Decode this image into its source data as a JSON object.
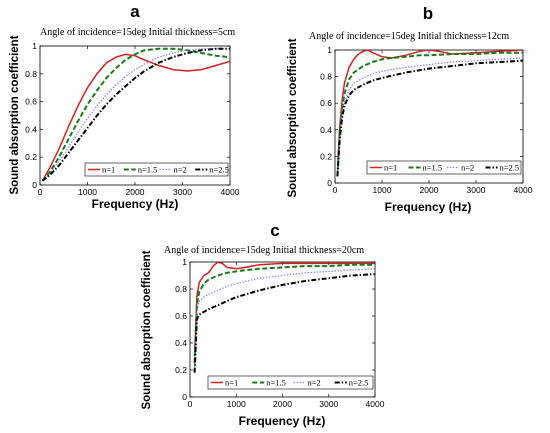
{
  "chart_data": [
    {
      "type": "line",
      "panel": "a",
      "title": "Angle of incidence=15deg Initial thickness=5cm",
      "xlabel": "Frequency (Hz)",
      "ylabel": "Sound absorption coefficient",
      "xlim": [
        0,
        4000
      ],
      "ylim": [
        0,
        1
      ],
      "xticks": [
        "0",
        "1000",
        "2000",
        "3000",
        "4000"
      ],
      "yticks": [
        "0",
        "0.2",
        "0.4",
        "0.6",
        "0.8",
        "1"
      ],
      "grid": false,
      "legend_position": "bottom-right",
      "series": [
        {
          "name": "n=1",
          "color": "#d62020",
          "dash": "solid",
          "x": [
            50,
            200,
            400,
            600,
            800,
            1000,
            1200,
            1400,
            1600,
            1800,
            2000,
            2200,
            2500,
            2800,
            3100,
            3400,
            3700,
            4000
          ],
          "y": [
            0.03,
            0.12,
            0.26,
            0.42,
            0.57,
            0.7,
            0.8,
            0.88,
            0.92,
            0.94,
            0.93,
            0.9,
            0.86,
            0.83,
            0.82,
            0.83,
            0.86,
            0.89
          ]
        },
        {
          "name": "n=1.5",
          "color": "#1a7a1a",
          "dash": "dashed",
          "x": [
            50,
            200,
            400,
            600,
            800,
            1000,
            1200,
            1400,
            1600,
            1800,
            2000,
            2200,
            2500,
            2800,
            3100,
            3400,
            3700,
            4000
          ],
          "y": [
            0.03,
            0.09,
            0.2,
            0.33,
            0.46,
            0.58,
            0.68,
            0.77,
            0.84,
            0.9,
            0.94,
            0.97,
            0.98,
            0.98,
            0.97,
            0.95,
            0.93,
            0.92
          ]
        },
        {
          "name": "n=2",
          "color": "#7b7bff",
          "dash": "dotted",
          "x": [
            50,
            200,
            400,
            600,
            800,
            1000,
            1200,
            1400,
            1600,
            1800,
            2000,
            2200,
            2500,
            2800,
            3100,
            3400,
            3700,
            4000
          ],
          "y": [
            0.03,
            0.08,
            0.17,
            0.27,
            0.38,
            0.48,
            0.57,
            0.65,
            0.72,
            0.78,
            0.83,
            0.87,
            0.92,
            0.95,
            0.97,
            0.98,
            0.98,
            0.98
          ]
        },
        {
          "name": "n=2.5",
          "color": "#000000",
          "dash": "dashdot",
          "x": [
            50,
            200,
            400,
            600,
            800,
            1000,
            1200,
            1400,
            1600,
            1800,
            2000,
            2200,
            2500,
            2800,
            3100,
            3400,
            3700,
            4000
          ],
          "y": [
            0.03,
            0.07,
            0.14,
            0.23,
            0.32,
            0.41,
            0.5,
            0.58,
            0.65,
            0.71,
            0.77,
            0.82,
            0.88,
            0.92,
            0.95,
            0.97,
            0.98,
            0.98
          ]
        }
      ]
    },
    {
      "type": "line",
      "panel": "b",
      "title": "Angle of incidence=15deg Initial thickness=12cm",
      "xlabel": "Frequency (Hz)",
      "ylabel": "Sound absorption coefficient",
      "xlim": [
        0,
        4000
      ],
      "ylim": [
        0,
        1
      ],
      "xticks": [
        "0",
        "1000",
        "2000",
        "3000",
        "4000"
      ],
      "yticks": [
        "0",
        "0.2",
        "0.4",
        "0.6",
        "0.8",
        "1"
      ],
      "grid": false,
      "legend_position": "bottom-right",
      "series": [
        {
          "name": "n=1",
          "color": "#d62020",
          "dash": "solid",
          "x": [
            50,
            100,
            150,
            200,
            300,
            400,
            500,
            600,
            700,
            800,
            1000,
            1200,
            1500,
            1800,
            2000,
            2200,
            2500,
            3000,
            3500,
            4000
          ],
          "y": [
            0.05,
            0.42,
            0.62,
            0.75,
            0.87,
            0.93,
            0.97,
            0.99,
            1.0,
            0.98,
            0.95,
            0.94,
            0.96,
            0.99,
            1.0,
            0.99,
            0.97,
            0.98,
            0.99,
            1.0
          ]
        },
        {
          "name": "n=1.5",
          "color": "#1a7a1a",
          "dash": "dashed",
          "x": [
            50,
            100,
            150,
            200,
            300,
            400,
            600,
            800,
            1000,
            1200,
            1500,
            1800,
            2000,
            2500,
            3000,
            3500,
            4000
          ],
          "y": [
            0.05,
            0.38,
            0.56,
            0.67,
            0.78,
            0.83,
            0.88,
            0.91,
            0.93,
            0.94,
            0.95,
            0.96,
            0.96,
            0.97,
            0.97,
            0.98,
            0.98
          ]
        },
        {
          "name": "n=2",
          "color": "#7b7bff",
          "dash": "dotted",
          "x": [
            50,
            100,
            150,
            200,
            300,
            400,
            600,
            800,
            1000,
            1500,
            2000,
            2500,
            3000,
            3500,
            4000
          ],
          "y": [
            0.05,
            0.35,
            0.51,
            0.61,
            0.7,
            0.75,
            0.79,
            0.82,
            0.84,
            0.87,
            0.89,
            0.91,
            0.92,
            0.93,
            0.94
          ]
        },
        {
          "name": "n=2.5",
          "color": "#000000",
          "dash": "dashdot",
          "x": [
            50,
            100,
            150,
            200,
            300,
            400,
            600,
            800,
            1000,
            1500,
            2000,
            2500,
            3000,
            3500,
            4000
          ],
          "y": [
            0.05,
            0.33,
            0.49,
            0.58,
            0.66,
            0.7,
            0.74,
            0.77,
            0.79,
            0.83,
            0.86,
            0.88,
            0.9,
            0.91,
            0.92
          ]
        }
      ]
    },
    {
      "type": "line",
      "panel": "c",
      "title": "Angle of incidence=15deg Initial thickness=20cm",
      "xlabel": "Frequency (Hz)",
      "ylabel": "Sound absorption coefficient",
      "xlim": [
        0,
        4000
      ],
      "ylim": [
        0,
        1
      ],
      "xticks": [
        "0",
        "1000",
        "2000",
        "3000",
        "4000"
      ],
      "yticks": [
        "0",
        "0.2",
        "0.4",
        "0.6",
        "0.8",
        "1"
      ],
      "grid": false,
      "legend_position": "bottom-right",
      "series": [
        {
          "name": "n=1",
          "color": "#d62020",
          "dash": "solid",
          "x": [
            100,
            150,
            200,
            300,
            400,
            500,
            600,
            700,
            800,
            1000,
            1200,
            1500,
            2000,
            2500,
            3000,
            3500,
            4000
          ],
          "y": [
            0.3,
            0.75,
            0.85,
            0.9,
            0.92,
            0.97,
            1.0,
            0.99,
            0.96,
            0.95,
            0.96,
            0.98,
            0.99,
            0.99,
            0.99,
            0.99,
            0.99
          ]
        },
        {
          "name": "n=1.5",
          "color": "#1a7a1a",
          "dash": "dashed",
          "x": [
            100,
            150,
            200,
            300,
            400,
            600,
            800,
            1000,
            1200,
            1500,
            2000,
            2500,
            3000,
            3500,
            4000
          ],
          "y": [
            0.25,
            0.68,
            0.78,
            0.84,
            0.87,
            0.9,
            0.92,
            0.93,
            0.94,
            0.95,
            0.96,
            0.97,
            0.97,
            0.98,
            0.98
          ]
        },
        {
          "name": "n=2",
          "color": "#7b7bff",
          "dash": "dotted",
          "x": [
            100,
            150,
            200,
            300,
            400,
            600,
            800,
            1000,
            1500,
            2000,
            2500,
            3000,
            3500,
            4000
          ],
          "y": [
            0.22,
            0.63,
            0.71,
            0.74,
            0.76,
            0.79,
            0.82,
            0.84,
            0.88,
            0.9,
            0.92,
            0.93,
            0.94,
            0.95
          ]
        },
        {
          "name": "n=2.5",
          "color": "#000000",
          "dash": "dashdot",
          "x": [
            100,
            150,
            200,
            300,
            400,
            600,
            800,
            1000,
            1500,
            2000,
            2500,
            3000,
            3500,
            4000
          ],
          "y": [
            0.18,
            0.58,
            0.61,
            0.63,
            0.65,
            0.68,
            0.71,
            0.74,
            0.79,
            0.83,
            0.86,
            0.88,
            0.9,
            0.91
          ]
        }
      ]
    }
  ]
}
